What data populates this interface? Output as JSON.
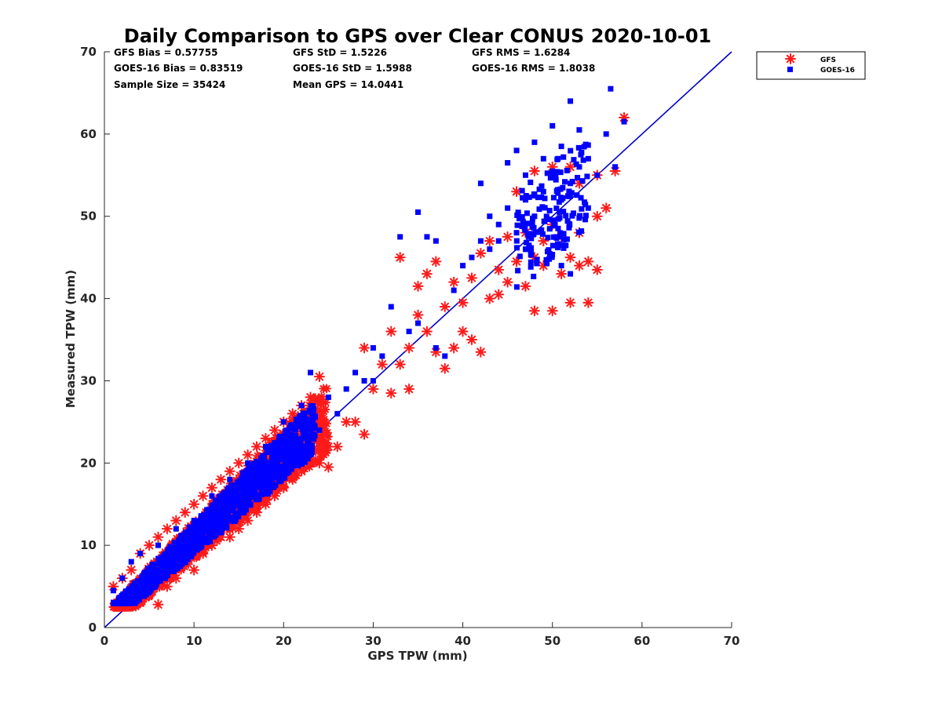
{
  "chart_data": {
    "type": "scatter",
    "title": "Daily Comparison to GPS over Clear CONUS 2020-10-01",
    "xlabel": "GPS TPW (mm)",
    "ylabel": "Measured TPW (mm)",
    "xlim": [
      0,
      70
    ],
    "ylim": [
      0,
      70
    ],
    "xticks": [
      "0",
      "10",
      "20",
      "30",
      "40",
      "50",
      "60",
      "70"
    ],
    "yticks": [
      "0",
      "10",
      "20",
      "30",
      "40",
      "50",
      "60",
      "70"
    ],
    "stats": {
      "gfs_bias": "GFS Bias = 0.57755",
      "gfs_std": "GFS StD = 1.5226",
      "gfs_rms": "GFS RMS = 1.6284",
      "goes_bias": "GOES-16 Bias = 0.83519",
      "goes_std": "GOES-16 StD = 1.5988",
      "goes_rms": "GOES-16 RMS = 1.8038",
      "sample_size": "Sample Size = 35424",
      "mean_gps": "Mean GPS = 14.0441"
    },
    "legend": {
      "position": "outside-top-right",
      "gfs": "GFS",
      "goes": "GOES-16"
    },
    "reference_line": {
      "from": [
        0,
        0
      ],
      "to": [
        70,
        70
      ],
      "color": "#0000cc"
    },
    "series": [
      {
        "name": "GFS",
        "marker": "asterisk",
        "color": "#ff1a1a",
        "points": [
          [
            1,
            5
          ],
          [
            2,
            3
          ],
          [
            2,
            6
          ],
          [
            3,
            2.7
          ],
          [
            3,
            7
          ],
          [
            4,
            3
          ],
          [
            4,
            9
          ],
          [
            5,
            4
          ],
          [
            5,
            10
          ],
          [
            6,
            2.8
          ],
          [
            6,
            11
          ],
          [
            7,
            5
          ],
          [
            7,
            12
          ],
          [
            8,
            6
          ],
          [
            8,
            13
          ],
          [
            9,
            8
          ],
          [
            9,
            14
          ],
          [
            10,
            7
          ],
          [
            10,
            15
          ],
          [
            11,
            9
          ],
          [
            11,
            16
          ],
          [
            12,
            10
          ],
          [
            12,
            17
          ],
          [
            13,
            11
          ],
          [
            13,
            18
          ],
          [
            14,
            11
          ],
          [
            14,
            19
          ],
          [
            15,
            12
          ],
          [
            15,
            20
          ],
          [
            16,
            13
          ],
          [
            16,
            21
          ],
          [
            17,
            14
          ],
          [
            17,
            22
          ],
          [
            18,
            15
          ],
          [
            18,
            23
          ],
          [
            19,
            16
          ],
          [
            19,
            24
          ],
          [
            20,
            17
          ],
          [
            20,
            25
          ],
          [
            21,
            18
          ],
          [
            21,
            26
          ],
          [
            22,
            19
          ],
          [
            22,
            27
          ],
          [
            23,
            20
          ],
          [
            23,
            28
          ],
          [
            24,
            20
          ],
          [
            24,
            30.5
          ],
          [
            25,
            22
          ],
          [
            25,
            19.5
          ],
          [
            26,
            22
          ],
          [
            27,
            25
          ],
          [
            28,
            25
          ],
          [
            29,
            23.5
          ],
          [
            29,
            34
          ],
          [
            30,
            29
          ],
          [
            31,
            32
          ],
          [
            32,
            28.5
          ],
          [
            32,
            36
          ],
          [
            33,
            32
          ],
          [
            33,
            45
          ],
          [
            34,
            29
          ],
          [
            34,
            34
          ],
          [
            35,
            38
          ],
          [
            35,
            41.5
          ],
          [
            36,
            36
          ],
          [
            36,
            43
          ],
          [
            37,
            33.5
          ],
          [
            37,
            44.5
          ],
          [
            38,
            31.5
          ],
          [
            38,
            39
          ],
          [
            39,
            34
          ],
          [
            39,
            42
          ],
          [
            40,
            36
          ],
          [
            40,
            39.5
          ],
          [
            41,
            35
          ],
          [
            41,
            42.5
          ],
          [
            42,
            33.5
          ],
          [
            42,
            45.5
          ],
          [
            43,
            40
          ],
          [
            43,
            47
          ],
          [
            44,
            43.5
          ],
          [
            44,
            40.5
          ],
          [
            45,
            42
          ],
          [
            45,
            47.5
          ],
          [
            46,
            53
          ],
          [
            46,
            44.5
          ],
          [
            47,
            41.5
          ],
          [
            47,
            48
          ],
          [
            48,
            38.5
          ],
          [
            48,
            45
          ],
          [
            49,
            44
          ],
          [
            49,
            47
          ],
          [
            50,
            38.5
          ],
          [
            50,
            49
          ],
          [
            51,
            43
          ],
          [
            51,
            47.5
          ],
          [
            52,
            39.5
          ],
          [
            52,
            45
          ],
          [
            53,
            44
          ],
          [
            53,
            48
          ],
          [
            54,
            39.5
          ],
          [
            54,
            44.5
          ],
          [
            55,
            43.5
          ],
          [
            55,
            50
          ],
          [
            56,
            51
          ],
          [
            57,
            55.5
          ],
          [
            58,
            62
          ],
          [
            48,
            55.5
          ],
          [
            50,
            56
          ],
          [
            52,
            56
          ],
          [
            53,
            54
          ],
          [
            55,
            55
          ]
        ]
      },
      {
        "name": "GOES-16",
        "marker": "square",
        "color": "#0000ff",
        "points": [
          [
            1,
            4.5
          ],
          [
            2,
            6
          ],
          [
            3,
            3.5
          ],
          [
            3,
            8
          ],
          [
            4,
            5
          ],
          [
            4,
            9
          ],
          [
            5,
            6
          ],
          [
            6,
            7
          ],
          [
            6,
            10
          ],
          [
            7,
            8
          ],
          [
            8,
            9
          ],
          [
            8,
            12
          ],
          [
            9,
            10
          ],
          [
            10,
            11
          ],
          [
            10,
            13
          ],
          [
            11,
            12
          ],
          [
            12,
            13
          ],
          [
            12,
            16
          ],
          [
            13,
            14
          ],
          [
            14,
            15
          ],
          [
            14,
            18
          ],
          [
            15,
            16
          ],
          [
            16,
            17
          ],
          [
            16,
            20
          ],
          [
            17,
            18
          ],
          [
            18,
            19
          ],
          [
            18,
            22
          ],
          [
            19,
            20
          ],
          [
            20,
            21
          ],
          [
            20,
            25
          ],
          [
            21,
            22
          ],
          [
            22,
            23
          ],
          [
            22,
            27
          ],
          [
            23,
            31
          ],
          [
            24,
            24
          ],
          [
            25,
            28
          ],
          [
            26,
            26
          ],
          [
            27,
            29
          ],
          [
            28,
            31
          ],
          [
            29,
            30
          ],
          [
            30,
            30
          ],
          [
            30,
            34
          ],
          [
            31,
            33
          ],
          [
            32,
            39
          ],
          [
            33,
            47.5
          ],
          [
            34,
            36
          ],
          [
            35,
            37
          ],
          [
            35,
            50.5
          ],
          [
            36,
            47.5
          ],
          [
            37,
            34
          ],
          [
            37,
            47
          ],
          [
            38,
            33
          ],
          [
            39,
            41
          ],
          [
            40,
            44
          ],
          [
            41,
            45
          ],
          [
            42,
            47
          ],
          [
            43,
            46
          ],
          [
            44,
            49
          ],
          [
            45,
            51
          ],
          [
            45,
            56.5
          ],
          [
            46,
            48
          ],
          [
            46,
            58
          ],
          [
            47,
            52
          ],
          [
            47,
            55
          ],
          [
            48,
            50
          ],
          [
            48,
            59
          ],
          [
            49,
            53
          ],
          [
            49,
            57
          ],
          [
            50,
            55
          ],
          [
            50,
            61
          ],
          [
            51,
            52
          ],
          [
            51,
            58.5
          ],
          [
            52,
            54
          ],
          [
            52,
            64
          ],
          [
            53,
            56
          ],
          [
            53,
            60.5
          ],
          [
            54,
            51
          ],
          [
            54,
            57
          ],
          [
            55,
            55
          ],
          [
            56,
            60
          ],
          [
            56.5,
            65.5
          ],
          [
            57,
            56
          ],
          [
            58,
            61.5
          ],
          [
            42,
            54
          ],
          [
            43,
            50
          ],
          [
            44,
            47
          ],
          [
            47,
            46
          ],
          [
            51,
            44
          ],
          [
            52,
            43
          ]
        ]
      }
    ]
  }
}
